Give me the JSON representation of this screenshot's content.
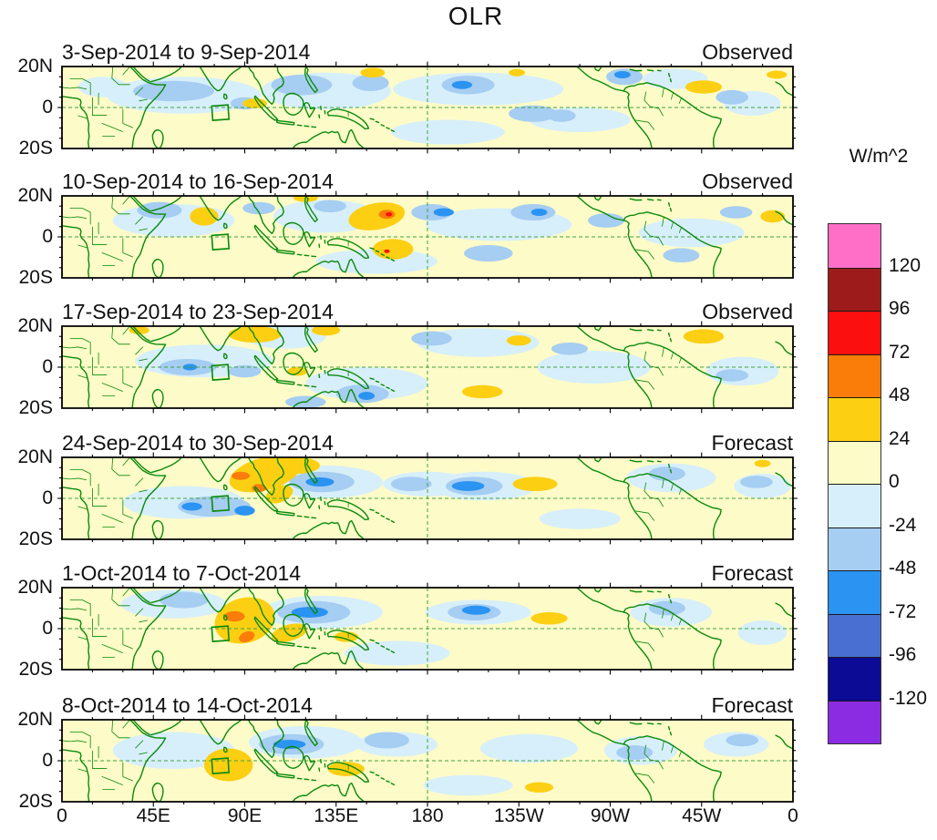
{
  "chart_data": {
    "type": "heatmap",
    "title": "OLR",
    "units": "W/m^2",
    "description": "Six tropical-strip filled-contour maps of OLR anomalies (20N-20S, 0-360E), three observed weeks and three forecast weeks, with a shared discrete colorbar.",
    "lon_ticks": [
      "0",
      "45E",
      "90E",
      "135E",
      "180",
      "135W",
      "90W",
      "45W",
      "0"
    ],
    "lat_ticks": [
      "20N",
      "0",
      "20S"
    ],
    "lon_range_deg": [
      0,
      360
    ],
    "lat_range_deg": [
      -20,
      20
    ],
    "legend_position": "right",
    "colorbar_levels": [
      120,
      96,
      72,
      48,
      24,
      0,
      -24,
      -48,
      -72,
      -96,
      -120
    ],
    "colorbar_colors_top_to_bottom": [
      "#FF6EC7",
      "#9E1B1B",
      "#FB0F0F",
      "#FA7D09",
      "#FCCF13",
      "#FDFBC8",
      "#D7EFFA",
      "#A6CDF2",
      "#2B93F1",
      "#4A6FD2",
      "#0B0B96",
      "#8B2BE2"
    ],
    "colors": {
      "coastline": "#0B8A0B",
      "gridline": "#3FA33F",
      "map_background": "#FDFBC8",
      "frame": "#000000"
    },
    "index_box": {
      "lon_min": 74,
      "lon_max": 82,
      "lat_min": -6,
      "lat_max": 1
    },
    "patch_format": [
      "lon_deg_east",
      "lat_deg",
      "radius_lon_deg",
      "radius_lat_deg",
      "band_lower_bound_wm2",
      "rotation_deg_optional"
    ],
    "panels": [
      {
        "date_range": "3-Sep-2014 to 9-Sep-2014",
        "type_label": "Observed",
        "anomaly_patches": [
          [
            60,
            6,
            38,
            9,
            -24
          ],
          [
            130,
            8,
            32,
            9,
            -24
          ],
          [
            205,
            9,
            42,
            8,
            -24
          ],
          [
            255,
            -6,
            25,
            6,
            -24
          ],
          [
            302,
            14,
            16,
            5,
            -24
          ],
          [
            190,
            -12,
            28,
            6,
            -24
          ],
          [
            340,
            2,
            14,
            6,
            -24
          ],
          [
            20,
            10,
            12,
            5,
            -24
          ],
          [
            55,
            8,
            20,
            5,
            -48
          ],
          [
            118,
            11,
            15,
            5,
            -48
          ],
          [
            152,
            12,
            9,
            4,
            -48
          ],
          [
            200,
            11,
            13,
            4.5,
            -48
          ],
          [
            232,
            -3,
            12,
            4,
            -48
          ],
          [
            277,
            15,
            9,
            4,
            -48
          ],
          [
            330,
            5,
            8,
            3.5,
            -48
          ],
          [
            90,
            2,
            7,
            3,
            -48
          ],
          [
            246,
            -4,
            7,
            3,
            -48
          ],
          [
            197,
            11,
            5,
            2,
            -72
          ],
          [
            276,
            16,
            4,
            1.8,
            -72
          ],
          [
            95,
            2,
            6,
            2.4,
            24
          ],
          [
            153,
            17,
            6,
            2.4,
            24
          ],
          [
            316,
            10,
            9,
            3.2,
            24
          ],
          [
            224,
            17,
            4,
            1.8,
            24
          ],
          [
            352,
            16,
            5,
            2,
            24
          ]
        ]
      },
      {
        "date_range": "10-Sep-2014 to 16-Sep-2014",
        "type_label": "Observed",
        "anomaly_patches": [
          [
            55,
            8,
            30,
            8,
            -24
          ],
          [
            130,
            10,
            26,
            8,
            -24
          ],
          [
            215,
            6,
            36,
            8,
            -24
          ],
          [
            310,
            2,
            26,
            7,
            -24
          ],
          [
            155,
            -12,
            30,
            6,
            -24
          ],
          [
            48,
            13,
            11,
            4,
            -48
          ],
          [
            97,
            14,
            8,
            3,
            -48
          ],
          [
            132,
            15,
            8,
            3,
            -48
          ],
          [
            182,
            12,
            10,
            4,
            -48
          ],
          [
            232,
            12,
            11,
            4,
            -48
          ],
          [
            268,
            8,
            9,
            3.5,
            -48
          ],
          [
            210,
            -8,
            12,
            4,
            -48
          ],
          [
            305,
            -9,
            9,
            3.5,
            -48
          ],
          [
            332,
            12,
            8,
            3,
            -48
          ],
          [
            188,
            12,
            5,
            2,
            -72
          ],
          [
            235,
            12,
            4,
            1.8,
            -72
          ],
          [
            70,
            10,
            7,
            4.5,
            24
          ],
          [
            120,
            19,
            6,
            2,
            24
          ],
          [
            155,
            10,
            14,
            6.5,
            24,
            -10
          ],
          [
            163,
            -6,
            10,
            5,
            24
          ],
          [
            350,
            10,
            6,
            3,
            24
          ],
          [
            160,
            11,
            4,
            2.2,
            48
          ],
          [
            161,
            11,
            1.6,
            1,
            72
          ],
          [
            160,
            -7,
            1.4,
            0.9,
            72
          ]
        ]
      },
      {
        "date_range": "17-Sep-2014 to 23-Sep-2014",
        "type_label": "Observed",
        "anomaly_patches": [
          [
            70,
            3,
            34,
            8,
            -24
          ],
          [
            150,
            -8,
            30,
            8,
            -24
          ],
          [
            205,
            12,
            30,
            7,
            -24
          ],
          [
            262,
            0,
            28,
            8,
            -24
          ],
          [
            335,
            -2,
            18,
            7,
            -24
          ],
          [
            110,
            15,
            20,
            6,
            -24
          ],
          [
            62,
            0,
            14,
            4,
            -48
          ],
          [
            90,
            -2,
            8,
            3,
            -48
          ],
          [
            148,
            -13,
            13,
            4.5,
            -48
          ],
          [
            182,
            14,
            10,
            3.5,
            -48
          ],
          [
            250,
            9,
            9,
            3,
            -48
          ],
          [
            330,
            -4,
            8,
            3,
            -48
          ],
          [
            120,
            -17,
            10,
            3,
            -48
          ],
          [
            63,
            0,
            3.5,
            1.6,
            -72
          ],
          [
            150,
            -14,
            4,
            2,
            -72
          ],
          [
            95,
            16,
            13,
            4,
            24
          ],
          [
            130,
            18,
            7,
            2.6,
            24
          ],
          [
            116,
            -2,
            5,
            2.2,
            24
          ],
          [
            207,
            -12,
            10,
            3.2,
            24
          ],
          [
            316,
            15,
            10,
            3.5,
            24
          ],
          [
            225,
            13,
            6,
            2.5,
            24
          ],
          [
            38,
            18,
            5,
            2,
            24
          ]
        ]
      },
      {
        "date_range": "24-Sep-2014 to 30-Sep-2014",
        "type_label": "Forecast",
        "anomaly_patches": [
          [
            60,
            -2,
            30,
            8,
            -24
          ],
          [
            130,
            8,
            28,
            8,
            -24
          ],
          [
            180,
            7,
            22,
            6,
            -24
          ],
          [
            208,
            6,
            26,
            7,
            -24
          ],
          [
            300,
            10,
            22,
            7,
            -24
          ],
          [
            345,
            6,
            14,
            6,
            -24
          ],
          [
            255,
            -10,
            20,
            5,
            -24
          ],
          [
            75,
            -4,
            18,
            5,
            -48
          ],
          [
            128,
            8,
            16,
            5,
            -48
          ],
          [
            172,
            7,
            10,
            3.5,
            -48
          ],
          [
            203,
            6,
            14,
            4.5,
            -48
          ],
          [
            298,
            12,
            9,
            3.5,
            -48
          ],
          [
            342,
            8,
            8,
            3,
            -48
          ],
          [
            64,
            -4,
            5,
            2,
            -72
          ],
          [
            90,
            -6,
            5,
            2.4,
            -72
          ],
          [
            127,
            8,
            7,
            2.2,
            -72
          ],
          [
            200,
            6,
            8,
            2.4,
            -72
          ],
          [
            100,
            12,
            18,
            8,
            24,
            -15
          ],
          [
            116,
            16,
            11,
            4,
            24
          ],
          [
            107,
            2,
            7,
            4,
            24,
            -20
          ],
          [
            233,
            7,
            11,
            3.5,
            24
          ],
          [
            345,
            17,
            4,
            1.8,
            24
          ],
          [
            88,
            11,
            4.5,
            2,
            48
          ],
          [
            97,
            5,
            3.5,
            2,
            48
          ]
        ]
      },
      {
        "date_range": "1-Oct-2014 to 7-Oct-2014",
        "type_label": "Forecast",
        "anomaly_patches": [
          [
            55,
            12,
            26,
            7,
            -24
          ],
          [
            128,
            8,
            30,
            8,
            -24
          ],
          [
            205,
            8,
            26,
            6,
            -24
          ],
          [
            165,
            -12,
            26,
            6,
            -24
          ],
          [
            300,
            8,
            20,
            7,
            -24
          ],
          [
            345,
            -2,
            12,
            6,
            -24
          ],
          [
            60,
            14,
            12,
            4,
            -48
          ],
          [
            124,
            8,
            18,
            5.5,
            -48
          ],
          [
            203,
            8,
            13,
            4,
            -48
          ],
          [
            298,
            10,
            9,
            3.5,
            -48
          ],
          [
            122,
            8,
            9,
            2.6,
            -72
          ],
          [
            204,
            9,
            7,
            2.2,
            -72
          ],
          [
            90,
            4,
            15,
            11,
            24,
            -15
          ],
          [
            112,
            -2,
            9,
            4,
            24,
            -15
          ],
          [
            240,
            5,
            9,
            3,
            24
          ],
          [
            140,
            -4,
            6,
            2.5,
            24
          ],
          [
            85,
            6,
            5,
            2.5,
            48
          ],
          [
            91,
            -4,
            4,
            2.5,
            48,
            -20
          ]
        ]
      },
      {
        "date_range": "8-Oct-2014 to 14-Oct-2014",
        "type_label": "Forecast",
        "anomaly_patches": [
          [
            55,
            5,
            30,
            9,
            -24
          ],
          [
            120,
            9,
            28,
            8,
            -24
          ],
          [
            165,
            8,
            20,
            6,
            -24
          ],
          [
            230,
            6,
            24,
            7,
            -24
          ],
          [
            285,
            5,
            18,
            7,
            -24
          ],
          [
            332,
            8,
            16,
            6,
            -24
          ],
          [
            200,
            -12,
            22,
            5,
            -24
          ],
          [
            113,
            8,
            16,
            5,
            -48
          ],
          [
            160,
            10,
            11,
            4,
            -48
          ],
          [
            282,
            4,
            9,
            3.5,
            -48
          ],
          [
            335,
            10,
            8,
            3,
            -48
          ],
          [
            112,
            8,
            8,
            2.2,
            -72
          ],
          [
            82,
            -2,
            12,
            8,
            24
          ],
          [
            140,
            -4,
            9,
            3.5,
            24
          ],
          [
            235,
            -13,
            7,
            2.5,
            24
          ]
        ]
      }
    ]
  }
}
